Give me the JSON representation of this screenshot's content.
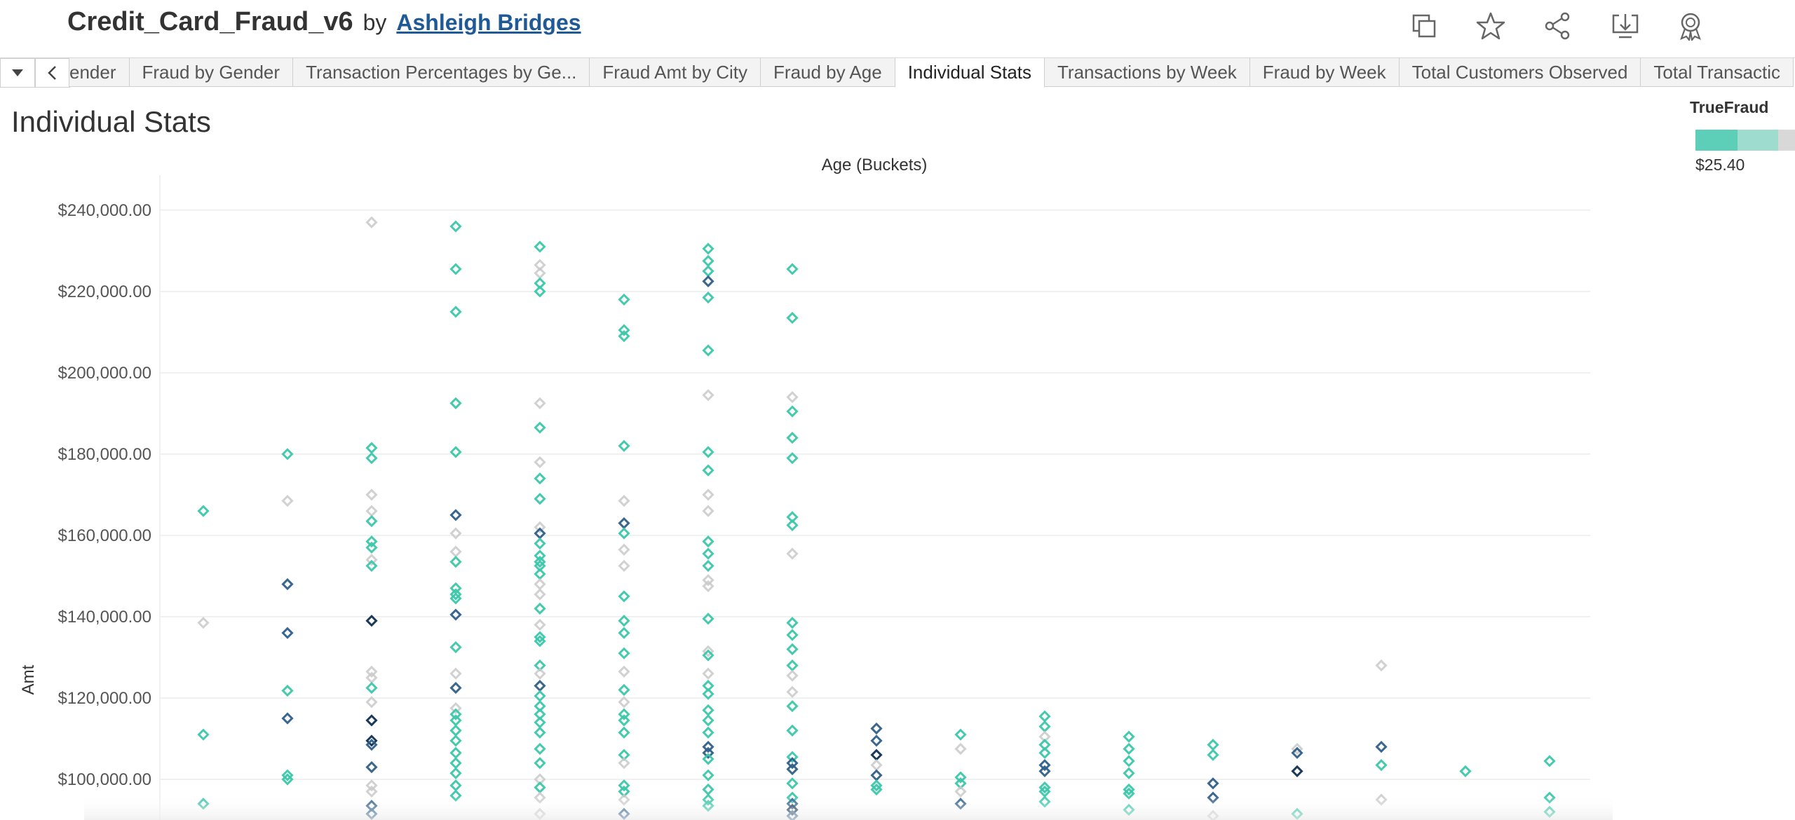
{
  "header": {
    "workbook_title": "Credit_Card_Fraud_v6",
    "by_label": "by",
    "author": "Ashleigh Bridges",
    "tools": [
      "duplicate-icon",
      "favorite-star-icon",
      "share-icon",
      "download-icon",
      "badge-icon"
    ]
  },
  "tabs": [
    {
      "label": "ender",
      "active": false
    },
    {
      "label": "Fraud by Gender",
      "active": false
    },
    {
      "label": "Transaction Percentages by Ge...",
      "active": false
    },
    {
      "label": "Fraud Amt by City",
      "active": false
    },
    {
      "label": "Fraud by Age",
      "active": false
    },
    {
      "label": "Individual Stats",
      "active": true
    },
    {
      "label": "Transactions by Week",
      "active": false
    },
    {
      "label": "Fraud by Week",
      "active": false
    },
    {
      "label": "Total Customers Observed",
      "active": false
    },
    {
      "label": "Total Transactic",
      "active": false
    }
  ],
  "sheet": {
    "title": "Individual Stats"
  },
  "legend": {
    "title": "TrueFraud",
    "value_label": "$25.40",
    "colors": [
      "#5dcfb9",
      "#9fdcd0",
      "#d8d8d8"
    ]
  },
  "chart_data": {
    "type": "scatter",
    "title": "",
    "xlabel": "Age (Buckets)",
    "ylabel": "Amt",
    "ylim": [
      90000,
      246000
    ],
    "yticks": [
      {
        "value": 240000,
        "label": "$240,000.00"
      },
      {
        "value": 220000,
        "label": "$220,000.00"
      },
      {
        "value": 200000,
        "label": "$200,000.00"
      },
      {
        "value": 180000,
        "label": "$180,000.00"
      },
      {
        "value": 160000,
        "label": "$160,000.00"
      },
      {
        "value": 140000,
        "label": "$140,000.00"
      },
      {
        "value": 120000,
        "label": "$120,000.00"
      },
      {
        "value": 100000,
        "label": "$100,000.00"
      }
    ],
    "grid": true,
    "marker": "diamond",
    "color_key": {
      "t": "#3cc7aa",
      "g": "#c9c9c9",
      "d": "#2e5f8a",
      "n": "#0f2e4f"
    },
    "buckets": [
      {
        "points": [
          [
            166000,
            "t"
          ],
          [
            138500,
            "g"
          ],
          [
            111000,
            "t"
          ],
          [
            94000,
            "t"
          ]
        ]
      },
      {
        "points": [
          [
            180000,
            "t"
          ],
          [
            168500,
            "g"
          ],
          [
            148000,
            "d"
          ],
          [
            136000,
            "d"
          ],
          [
            121800,
            "t"
          ],
          [
            115000,
            "d"
          ],
          [
            101000,
            "t"
          ],
          [
            100000,
            "t"
          ]
        ]
      },
      {
        "points": [
          [
            237000,
            "g"
          ],
          [
            181500,
            "t"
          ],
          [
            179000,
            "t"
          ],
          [
            170000,
            "g"
          ],
          [
            166000,
            "g"
          ],
          [
            163500,
            "t"
          ],
          [
            158500,
            "t"
          ],
          [
            157000,
            "t"
          ],
          [
            154000,
            "g"
          ],
          [
            152500,
            "t"
          ],
          [
            139000,
            "n"
          ],
          [
            126500,
            "g"
          ],
          [
            125000,
            "g"
          ],
          [
            122500,
            "t"
          ],
          [
            119000,
            "g"
          ],
          [
            114500,
            "n"
          ],
          [
            109500,
            "n"
          ],
          [
            108500,
            "d"
          ],
          [
            103000,
            "d"
          ],
          [
            98500,
            "g"
          ],
          [
            97000,
            "g"
          ],
          [
            93500,
            "d"
          ],
          [
            91500,
            "d"
          ]
        ]
      },
      {
        "points": [
          [
            236000,
            "t"
          ],
          [
            225500,
            "t"
          ],
          [
            215000,
            "t"
          ],
          [
            192500,
            "t"
          ],
          [
            180500,
            "t"
          ],
          [
            165000,
            "d"
          ],
          [
            160500,
            "g"
          ],
          [
            156000,
            "g"
          ],
          [
            153500,
            "t"
          ],
          [
            147000,
            "t"
          ],
          [
            145500,
            "t"
          ],
          [
            144500,
            "t"
          ],
          [
            140500,
            "d"
          ],
          [
            132500,
            "t"
          ],
          [
            126000,
            "g"
          ],
          [
            122500,
            "d"
          ],
          [
            117500,
            "g"
          ],
          [
            116000,
            "t"
          ],
          [
            114500,
            "t"
          ],
          [
            112000,
            "t"
          ],
          [
            109500,
            "t"
          ],
          [
            106500,
            "t"
          ],
          [
            104000,
            "t"
          ],
          [
            101500,
            "t"
          ],
          [
            98500,
            "t"
          ],
          [
            96000,
            "t"
          ]
        ]
      },
      {
        "points": [
          [
            231000,
            "t"
          ],
          [
            226500,
            "g"
          ],
          [
            224500,
            "g"
          ],
          [
            222000,
            "t"
          ],
          [
            220000,
            "t"
          ],
          [
            192500,
            "g"
          ],
          [
            186500,
            "t"
          ],
          [
            178000,
            "g"
          ],
          [
            174000,
            "t"
          ],
          [
            169000,
            "t"
          ],
          [
            162000,
            "g"
          ],
          [
            160500,
            "d"
          ],
          [
            158000,
            "t"
          ],
          [
            155000,
            "t"
          ],
          [
            153500,
            "t"
          ],
          [
            152500,
            "t"
          ],
          [
            150500,
            "t"
          ],
          [
            148000,
            "g"
          ],
          [
            145500,
            "g"
          ],
          [
            142000,
            "t"
          ],
          [
            138000,
            "g"
          ],
          [
            135000,
            "t"
          ],
          [
            134000,
            "t"
          ],
          [
            128000,
            "t"
          ],
          [
            126000,
            "g"
          ],
          [
            123000,
            "d"
          ],
          [
            120500,
            "t"
          ],
          [
            118000,
            "t"
          ],
          [
            116000,
            "t"
          ],
          [
            114000,
            "t"
          ],
          [
            111500,
            "t"
          ],
          [
            107500,
            "t"
          ],
          [
            104000,
            "t"
          ],
          [
            100000,
            "g"
          ],
          [
            98000,
            "t"
          ],
          [
            95500,
            "g"
          ],
          [
            91500,
            "g"
          ]
        ]
      },
      {
        "points": [
          [
            218000,
            "t"
          ],
          [
            210500,
            "t"
          ],
          [
            209000,
            "t"
          ],
          [
            182000,
            "t"
          ],
          [
            168500,
            "g"
          ],
          [
            163000,
            "d"
          ],
          [
            160500,
            "t"
          ],
          [
            156500,
            "g"
          ],
          [
            152500,
            "g"
          ],
          [
            145000,
            "t"
          ],
          [
            139000,
            "t"
          ],
          [
            136000,
            "t"
          ],
          [
            131000,
            "t"
          ],
          [
            126500,
            "g"
          ],
          [
            122000,
            "t"
          ],
          [
            119000,
            "g"
          ],
          [
            116000,
            "t"
          ],
          [
            114500,
            "t"
          ],
          [
            111500,
            "t"
          ],
          [
            106000,
            "t"
          ],
          [
            104000,
            "g"
          ],
          [
            98500,
            "t"
          ],
          [
            97000,
            "t"
          ],
          [
            95000,
            "g"
          ],
          [
            91500,
            "d"
          ]
        ]
      },
      {
        "points": [
          [
            230500,
            "t"
          ],
          [
            227500,
            "t"
          ],
          [
            225000,
            "t"
          ],
          [
            222500,
            "d"
          ],
          [
            218500,
            "t"
          ],
          [
            205500,
            "t"
          ],
          [
            194500,
            "g"
          ],
          [
            180500,
            "t"
          ],
          [
            176000,
            "t"
          ],
          [
            170000,
            "g"
          ],
          [
            166000,
            "g"
          ],
          [
            158500,
            "t"
          ],
          [
            155500,
            "t"
          ],
          [
            152500,
            "t"
          ],
          [
            149000,
            "g"
          ],
          [
            147500,
            "g"
          ],
          [
            139500,
            "t"
          ],
          [
            131500,
            "g"
          ],
          [
            130500,
            "t"
          ],
          [
            126000,
            "g"
          ],
          [
            123000,
            "t"
          ],
          [
            121000,
            "t"
          ],
          [
            117000,
            "t"
          ],
          [
            114500,
            "t"
          ],
          [
            111500,
            "t"
          ],
          [
            108000,
            "d"
          ],
          [
            106500,
            "d"
          ],
          [
            105000,
            "t"
          ],
          [
            101000,
            "t"
          ],
          [
            97500,
            "t"
          ],
          [
            95000,
            "t"
          ],
          [
            93500,
            "t"
          ]
        ]
      },
      {
        "points": [
          [
            225500,
            "t"
          ],
          [
            213500,
            "t"
          ],
          [
            194000,
            "g"
          ],
          [
            190500,
            "t"
          ],
          [
            184000,
            "t"
          ],
          [
            179000,
            "t"
          ],
          [
            164500,
            "t"
          ],
          [
            162500,
            "t"
          ],
          [
            155500,
            "g"
          ],
          [
            138500,
            "t"
          ],
          [
            135500,
            "t"
          ],
          [
            132000,
            "t"
          ],
          [
            128000,
            "t"
          ],
          [
            125500,
            "g"
          ],
          [
            121500,
            "g"
          ],
          [
            118000,
            "t"
          ],
          [
            112000,
            "t"
          ],
          [
            105500,
            "t"
          ],
          [
            104000,
            "d"
          ],
          [
            102500,
            "d"
          ],
          [
            99000,
            "t"
          ],
          [
            95500,
            "t"
          ],
          [
            94000,
            "d"
          ],
          [
            92500,
            "n"
          ],
          [
            91000,
            "d"
          ]
        ]
      },
      {
        "points": [
          [
            112500,
            "d"
          ],
          [
            109500,
            "d"
          ],
          [
            106000,
            "n"
          ],
          [
            103500,
            "g"
          ],
          [
            101000,
            "d"
          ],
          [
            98500,
            "t"
          ],
          [
            97500,
            "t"
          ]
        ]
      },
      {
        "points": [
          [
            111000,
            "t"
          ],
          [
            107500,
            "g"
          ],
          [
            100500,
            "t"
          ],
          [
            99000,
            "t"
          ],
          [
            97000,
            "g"
          ],
          [
            94000,
            "d"
          ]
        ]
      },
      {
        "points": [
          [
            115500,
            "t"
          ],
          [
            113000,
            "t"
          ],
          [
            110500,
            "g"
          ],
          [
            108500,
            "t"
          ],
          [
            106500,
            "t"
          ],
          [
            103500,
            "d"
          ],
          [
            102000,
            "d"
          ],
          [
            98000,
            "t"
          ],
          [
            97000,
            "t"
          ],
          [
            94500,
            "t"
          ]
        ]
      },
      {
        "points": [
          [
            110500,
            "t"
          ],
          [
            107500,
            "t"
          ],
          [
            104500,
            "t"
          ],
          [
            101500,
            "t"
          ],
          [
            97500,
            "t"
          ],
          [
            96500,
            "t"
          ],
          [
            92500,
            "t"
          ]
        ]
      },
      {
        "points": [
          [
            108500,
            "t"
          ],
          [
            106000,
            "t"
          ],
          [
            99000,
            "d"
          ],
          [
            95500,
            "d"
          ],
          [
            91000,
            "g"
          ]
        ]
      },
      {
        "points": [
          [
            107500,
            "g"
          ],
          [
            106500,
            "d"
          ],
          [
            102000,
            "n"
          ],
          [
            91500,
            "t"
          ]
        ]
      },
      {
        "points": [
          [
            128000,
            "g"
          ],
          [
            108000,
            "d"
          ],
          [
            103500,
            "t"
          ],
          [
            95000,
            "g"
          ]
        ]
      },
      {
        "points": [
          [
            102000,
            "t"
          ]
        ]
      },
      {
        "points": [
          [
            104500,
            "t"
          ],
          [
            95500,
            "t"
          ],
          [
            92000,
            "t"
          ]
        ]
      }
    ]
  }
}
